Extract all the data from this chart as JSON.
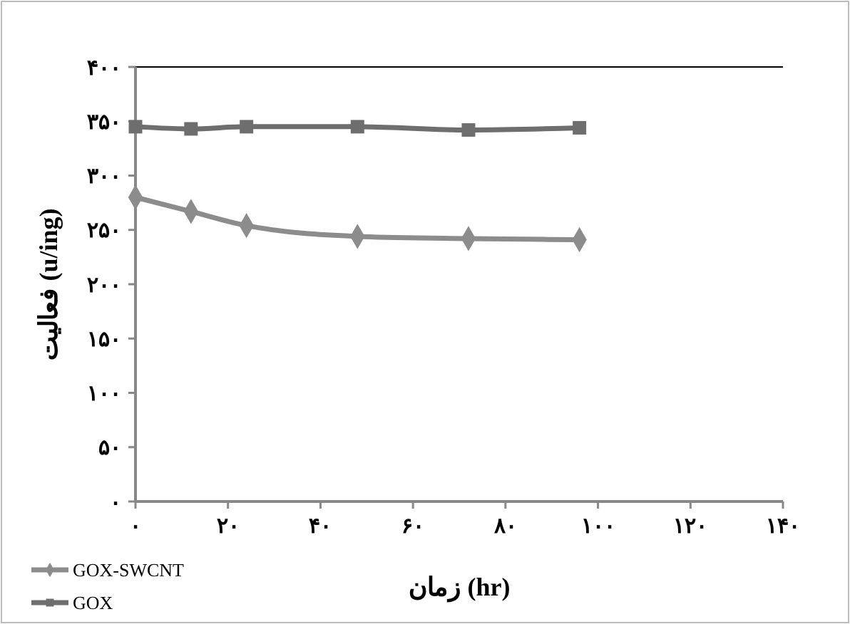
{
  "chart_data": {
    "type": "line",
    "xlabel": "زمان (hr)",
    "ylabel": "فعالیت (u/ing)",
    "x": [
      0,
      12,
      24,
      48,
      72,
      96
    ],
    "series": [
      {
        "name": "GOX-SWCNT",
        "color": "#8c8c8c",
        "marker": "diamond",
        "values": [
          280,
          267,
          254,
          244,
          242,
          241
        ]
      },
      {
        "name": "GOX",
        "color": "#6e6e6e",
        "marker": "square",
        "values": [
          345,
          343,
          345,
          345,
          342,
          344
        ]
      }
    ],
    "xlim": [
      0,
      140
    ],
    "xticks": [
      {
        "value": 0,
        "label": "۰"
      },
      {
        "value": 20,
        "label": "۲۰"
      },
      {
        "value": 40,
        "label": "۴۰"
      },
      {
        "value": 60,
        "label": "۶۰"
      },
      {
        "value": 80,
        "label": "۸۰"
      },
      {
        "value": 100,
        "label": "۱۰۰"
      },
      {
        "value": 120,
        "label": "۱۲۰"
      },
      {
        "value": 140,
        "label": "۱۴۰"
      }
    ],
    "ylim": [
      0,
      400
    ],
    "yticks": [
      {
        "value": 0,
        "label": "۰"
      },
      {
        "value": 50,
        "label": "۵۰"
      },
      {
        "value": 100,
        "label": "۱۰۰"
      },
      {
        "value": 150,
        "label": "۱۵۰"
      },
      {
        "value": 200,
        "label": "۲۰۰"
      },
      {
        "value": 250,
        "label": "۲۵۰"
      },
      {
        "value": 300,
        "label": "۳۰۰"
      },
      {
        "value": 350,
        "label": "۳۵۰"
      },
      {
        "value": 400,
        "label": "۴۰۰"
      }
    ],
    "grid": false,
    "legend": "bottom left",
    "line_style": "solid"
  }
}
